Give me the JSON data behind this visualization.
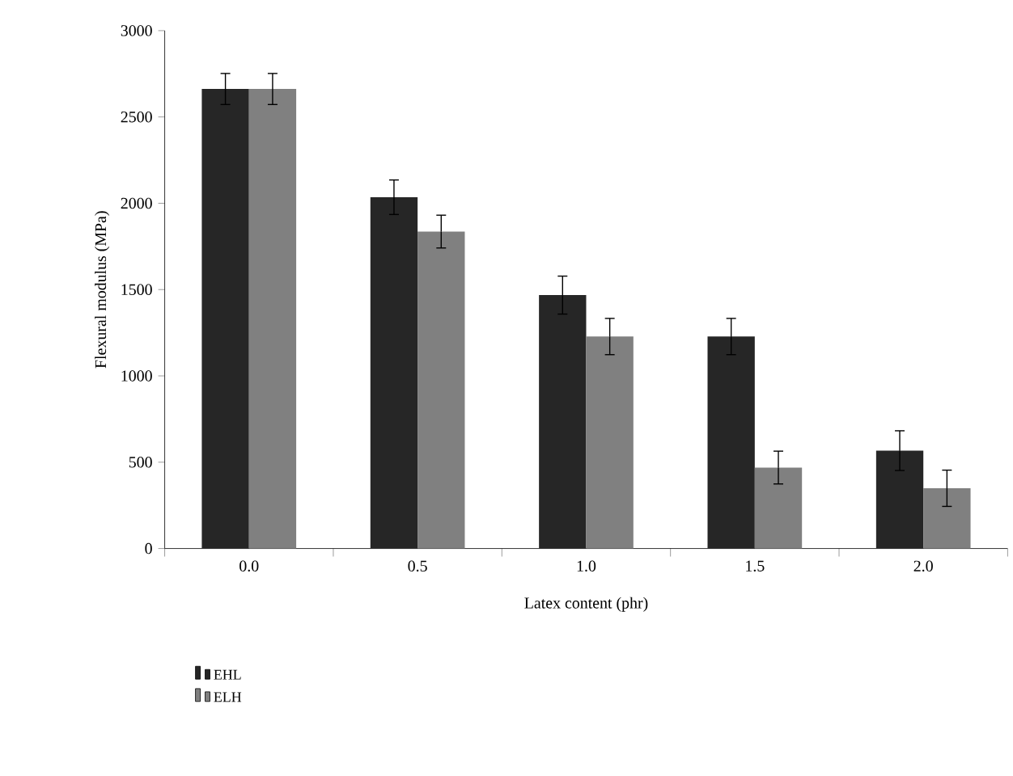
{
  "chart_data": {
    "type": "bar",
    "xlabel": "Latex content (phr)",
    "ylabel": "Flexural modulus (MPa)",
    "categories": [
      "0.0",
      "0.5",
      "1.0",
      "1.5",
      "2.0"
    ],
    "series": [
      {
        "name": "EHL",
        "color": "#262626",
        "values": [
          2662,
          2035,
          1468,
          1228,
          567
        ],
        "errors": [
          90,
          100,
          110,
          105,
          115
        ]
      },
      {
        "name": "ELH",
        "color": "#808080",
        "values": [
          2662,
          1836,
          1228,
          469,
          349
        ],
        "errors": [
          90,
          95,
          105,
          95,
          105
        ]
      }
    ],
    "ylim": [
      0,
      3000
    ],
    "yticks": [
      0,
      500,
      1000,
      1500,
      2000,
      2500,
      3000
    ],
    "legend": "bottom left"
  }
}
